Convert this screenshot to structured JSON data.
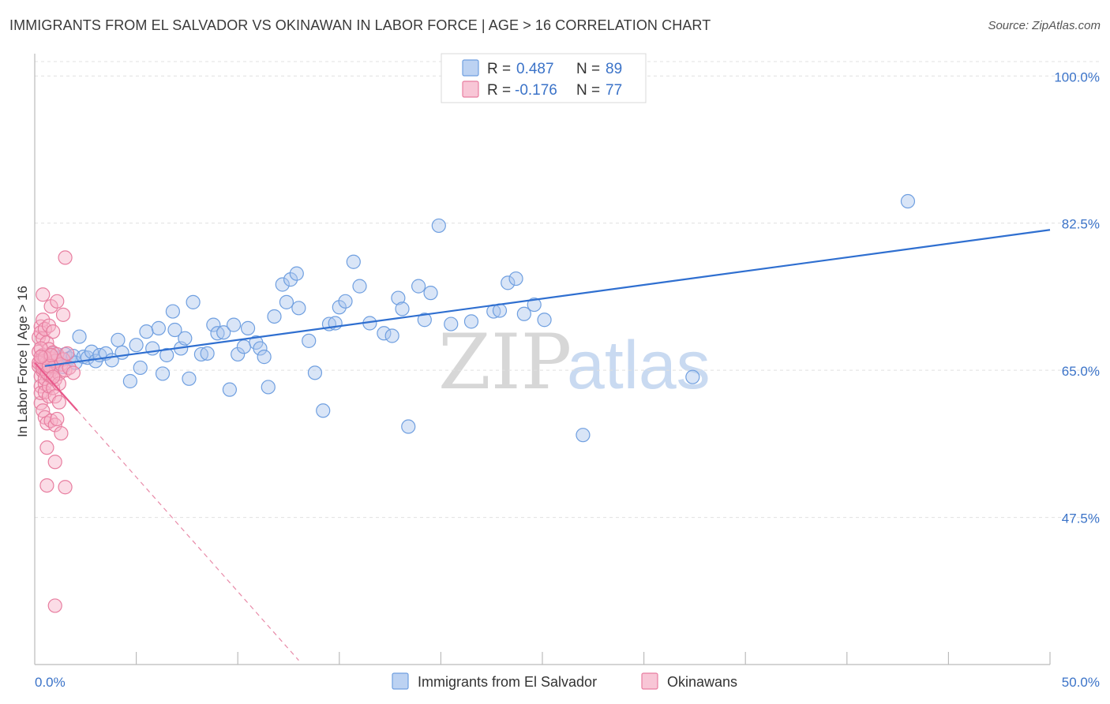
{
  "title": "IMMIGRANTS FROM EL SALVADOR VS OKINAWAN IN LABOR FORCE | AGE > 16 CORRELATION CHART",
  "source": "Source: ZipAtlas.com",
  "watermark": {
    "zip": "ZIP",
    "atlas": "atlas"
  },
  "chart_data": {
    "type": "scatter",
    "xlabel": "",
    "ylabel": "In Labor Force | Age > 16",
    "xlim": [
      0,
      50
    ],
    "ylim": [
      30,
      102
    ],
    "x_tick_labels": [
      "0.0%",
      "50.0%"
    ],
    "y_ticks": [
      47.5,
      65.0,
      82.5,
      100.0
    ],
    "y_tick_labels": [
      "47.5%",
      "65.0%",
      "82.5%",
      "100.0%"
    ],
    "legend": [
      {
        "name": "Immigrants from El Salvador",
        "r_label": "R =",
        "r_value": "0.487",
        "n_label": "N =",
        "n_value": "89",
        "color": "#6f9fe0",
        "fill": "#bcd2f2"
      },
      {
        "name": "Okinawans",
        "r_label": "R =",
        "r_value": "-0.176",
        "n_label": "N =",
        "n_value": "77",
        "color": "#e87ea0",
        "fill": "#f8c6d6"
      }
    ],
    "series": [
      {
        "name": "Immigrants from El Salvador",
        "color": "#6f9fe0",
        "trend": {
          "x": [
            0.5,
            50
          ],
          "y": [
            65.5,
            81.7
          ],
          "color": "#2f6fd0"
        },
        "points": [
          [
            0.4,
            65.5
          ],
          [
            0.5,
            66.2
          ],
          [
            0.6,
            65.0
          ],
          [
            0.7,
            66.8
          ],
          [
            0.8,
            65.3
          ],
          [
            0.9,
            67.0
          ],
          [
            1.0,
            66.0
          ],
          [
            1.1,
            65.8
          ],
          [
            1.2,
            66.5
          ],
          [
            1.4,
            65.4
          ],
          [
            1.5,
            66.9
          ],
          [
            1.7,
            66.4
          ],
          [
            1.9,
            66.7
          ],
          [
            2.0,
            65.9
          ],
          [
            2.2,
            69.0
          ],
          [
            2.4,
            66.6
          ],
          [
            2.6,
            66.5
          ],
          [
            2.8,
            67.2
          ],
          [
            3.0,
            66.1
          ],
          [
            3.2,
            66.8
          ],
          [
            3.5,
            67.0
          ],
          [
            3.8,
            66.2
          ],
          [
            4.1,
            68.6
          ],
          [
            4.3,
            67.1
          ],
          [
            4.7,
            63.7
          ],
          [
            5.0,
            68.0
          ],
          [
            5.2,
            65.3
          ],
          [
            5.5,
            69.6
          ],
          [
            5.8,
            67.6
          ],
          [
            6.1,
            70.0
          ],
          [
            6.3,
            64.6
          ],
          [
            6.5,
            66.8
          ],
          [
            6.8,
            72.0
          ],
          [
            6.9,
            69.8
          ],
          [
            7.2,
            67.6
          ],
          [
            7.4,
            68.8
          ],
          [
            7.6,
            64.0
          ],
          [
            7.8,
            73.1
          ],
          [
            8.2,
            66.9
          ],
          [
            8.5,
            67.0
          ],
          [
            8.8,
            70.4
          ],
          [
            9.0,
            69.4
          ],
          [
            9.3,
            69.5
          ],
          [
            9.6,
            62.7
          ],
          [
            9.8,
            70.4
          ],
          [
            10.0,
            66.9
          ],
          [
            10.3,
            67.8
          ],
          [
            10.5,
            70.0
          ],
          [
            10.9,
            68.3
          ],
          [
            11.1,
            67.6
          ],
          [
            11.3,
            66.6
          ],
          [
            11.5,
            63.0
          ],
          [
            11.8,
            71.4
          ],
          [
            12.2,
            75.2
          ],
          [
            12.4,
            73.1
          ],
          [
            12.6,
            75.8
          ],
          [
            12.9,
            76.5
          ],
          [
            13.0,
            72.4
          ],
          [
            13.5,
            68.5
          ],
          [
            13.8,
            64.7
          ],
          [
            14.2,
            60.2
          ],
          [
            14.5,
            70.5
          ],
          [
            14.8,
            70.6
          ],
          [
            15.0,
            72.5
          ],
          [
            15.3,
            73.2
          ],
          [
            15.7,
            77.9
          ],
          [
            16.0,
            75.0
          ],
          [
            16.5,
            70.6
          ],
          [
            17.2,
            69.4
          ],
          [
            17.6,
            69.1
          ],
          [
            17.9,
            73.6
          ],
          [
            18.1,
            72.3
          ],
          [
            18.4,
            58.3
          ],
          [
            18.9,
            75.0
          ],
          [
            19.2,
            71.0
          ],
          [
            19.5,
            74.2
          ],
          [
            19.9,
            82.2
          ],
          [
            20.5,
            70.5
          ],
          [
            21.5,
            70.8
          ],
          [
            22.6,
            72.0
          ],
          [
            22.9,
            72.1
          ],
          [
            23.3,
            75.4
          ],
          [
            23.7,
            75.9
          ],
          [
            24.1,
            71.7
          ],
          [
            24.6,
            72.8
          ],
          [
            25.1,
            71.0
          ],
          [
            27.0,
            57.3
          ],
          [
            32.4,
            64.2
          ],
          [
            43.0,
            85.1
          ]
        ]
      },
      {
        "name": "Okinawans",
        "color": "#e87ea0",
        "trend": {
          "x": [
            0,
            2.1
          ],
          "y": [
            65.9,
            60.2
          ],
          "color": "#e8588a"
        },
        "trend_dashed": {
          "x": [
            2.1,
            13
          ],
          "y": [
            60.2,
            30.5
          ],
          "color": "#e88aa8"
        },
        "points": [
          [
            0.2,
            65.5
          ],
          [
            0.2,
            67.2
          ],
          [
            0.2,
            68.9
          ],
          [
            0.3,
            70.2
          ],
          [
            0.3,
            61.1
          ],
          [
            0.3,
            64.3
          ],
          [
            0.3,
            63.1
          ],
          [
            0.3,
            65.9
          ],
          [
            0.3,
            66.2
          ],
          [
            0.3,
            69.5
          ],
          [
            0.3,
            62.3
          ],
          [
            0.4,
            71.0
          ],
          [
            0.4,
            64.9
          ],
          [
            0.4,
            65.6
          ],
          [
            0.4,
            74.0
          ],
          [
            0.4,
            68.8
          ],
          [
            0.4,
            66.8
          ],
          [
            0.4,
            60.2
          ],
          [
            0.5,
            59.4
          ],
          [
            0.5,
            63.4
          ],
          [
            0.5,
            65.1
          ],
          [
            0.5,
            66.7
          ],
          [
            0.5,
            69.9
          ],
          [
            0.5,
            62.4
          ],
          [
            0.5,
            64.0
          ],
          [
            0.6,
            65.3
          ],
          [
            0.6,
            66.0
          ],
          [
            0.6,
            58.7
          ],
          [
            0.6,
            51.3
          ],
          [
            0.6,
            55.8
          ],
          [
            0.6,
            68.3
          ],
          [
            0.7,
            70.3
          ],
          [
            0.7,
            61.9
          ],
          [
            0.7,
            64.4
          ],
          [
            0.7,
            65.8
          ],
          [
            0.7,
            67.5
          ],
          [
            0.7,
            63.1
          ],
          [
            0.8,
            72.6
          ],
          [
            0.8,
            64.3
          ],
          [
            0.8,
            66.4
          ],
          [
            0.8,
            59.0
          ],
          [
            0.8,
            65.0
          ],
          [
            0.9,
            69.6
          ],
          [
            0.9,
            67.1
          ],
          [
            0.9,
            62.9
          ],
          [
            0.9,
            65.4
          ],
          [
            1.0,
            58.5
          ],
          [
            1.0,
            63.9
          ],
          [
            1.0,
            66.1
          ],
          [
            1.0,
            61.9
          ],
          [
            1.0,
            54.1
          ],
          [
            1.1,
            59.2
          ],
          [
            1.1,
            73.2
          ],
          [
            1.1,
            66.9
          ],
          [
            1.2,
            64.6
          ],
          [
            1.2,
            61.2
          ],
          [
            1.2,
            63.4
          ],
          [
            1.3,
            65.7
          ],
          [
            1.3,
            57.5
          ],
          [
            1.4,
            71.6
          ],
          [
            1.4,
            66.3
          ],
          [
            1.5,
            65.0
          ],
          [
            1.5,
            78.4
          ],
          [
            1.5,
            51.1
          ],
          [
            1.6,
            67.0
          ],
          [
            1.7,
            65.3
          ],
          [
            1.9,
            64.7
          ],
          [
            1.0,
            37.0
          ],
          [
            0.2,
            65.9
          ],
          [
            0.3,
            67.6
          ],
          [
            0.4,
            65.2
          ],
          [
            0.5,
            66.5
          ],
          [
            0.6,
            64.7
          ],
          [
            0.7,
            65.5
          ],
          [
            0.8,
            66.8
          ],
          [
            0.9,
            64.2
          ],
          [
            0.3,
            66.6
          ]
        ]
      }
    ]
  }
}
